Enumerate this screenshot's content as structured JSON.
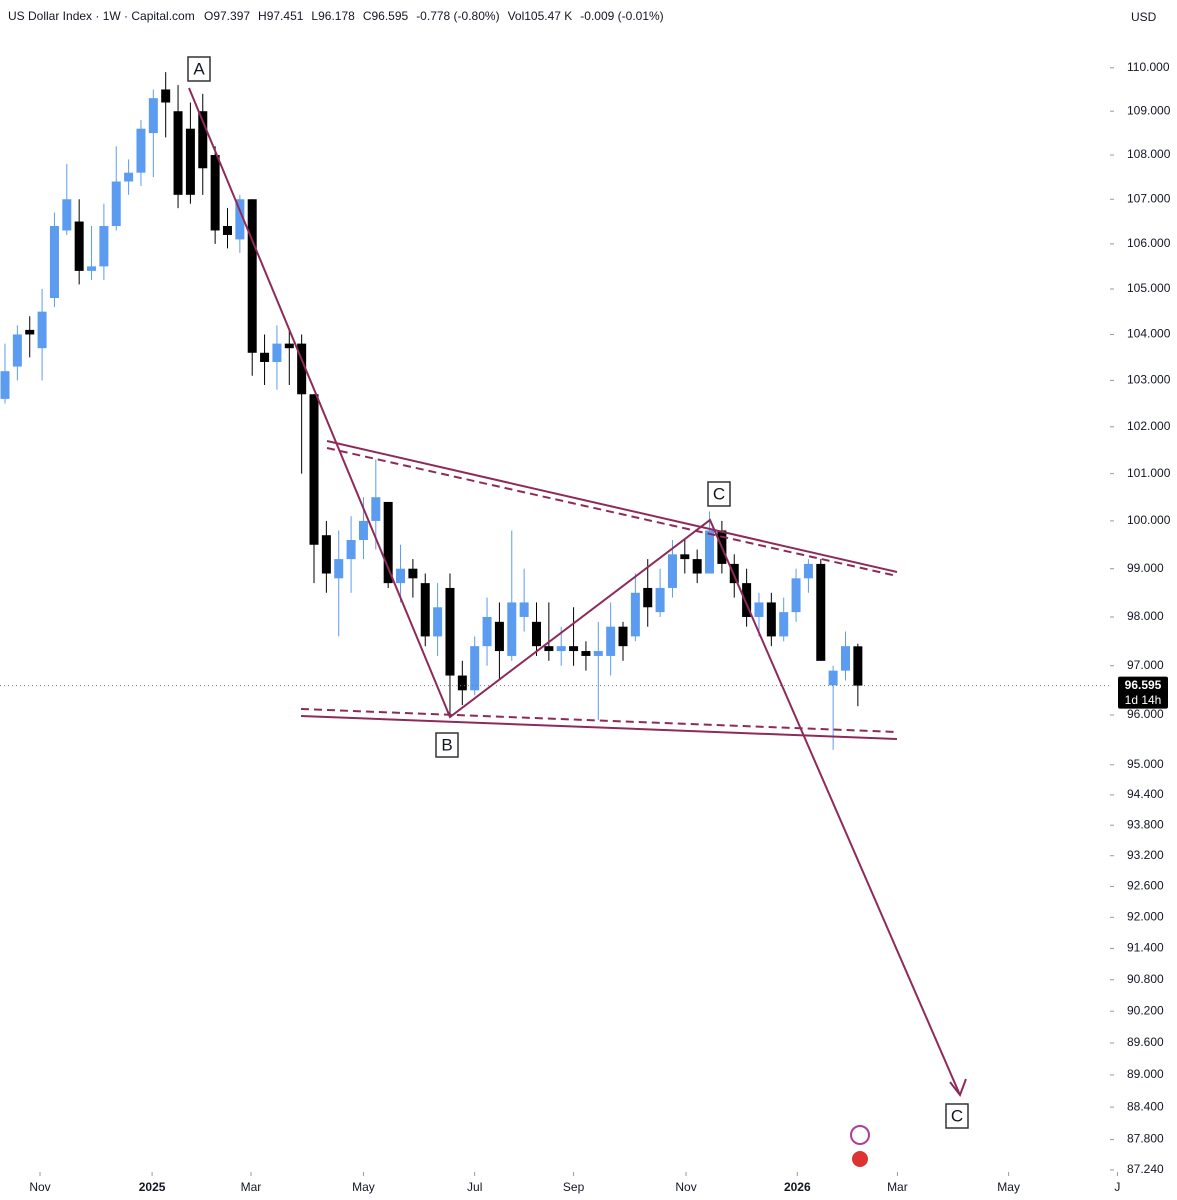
{
  "chart_data": {
    "type": "candlestick",
    "title": "US Dollar Index · 1W · Capital.com",
    "legend_values": [
      "O97.397",
      "H97.451",
      "L96.178",
      "C96.595",
      "-0.778 (-0.80%)",
      "Vol105.47 K",
      "-0.009 (-0.01%)"
    ],
    "currency": "USD",
    "log_scale": true,
    "grid": false,
    "up_color": "#5b9cf0",
    "down_color": "#000000",
    "line_color": "#8e2a5a",
    "x": [
      0,
      1,
      2,
      3,
      4,
      5,
      6,
      7,
      8,
      9,
      10,
      11,
      12,
      13,
      14,
      15,
      16,
      17,
      18,
      19,
      20,
      21,
      22,
      23,
      24,
      25,
      26,
      27,
      28,
      29,
      30,
      31,
      32,
      33,
      34,
      35,
      36,
      37,
      38,
      39,
      40,
      41,
      42,
      43,
      44,
      45,
      46,
      47,
      48,
      49,
      50,
      51,
      52,
      53,
      54,
      55,
      56,
      57,
      58,
      59,
      60,
      61,
      62,
      63,
      64,
      65,
      66,
      67,
      68,
      69
    ],
    "open": [
      102.6,
      103.3,
      104.1,
      103.7,
      104.8,
      106.3,
      106.5,
      105.4,
      105.5,
      106.4,
      107.4,
      107.6,
      108.5,
      109.5,
      109.0,
      108.6,
      109.0,
      108.0,
      106.4,
      106.1,
      107.0,
      103.6,
      103.4,
      103.8,
      103.8,
      102.7,
      99.7,
      98.8,
      99.2,
      99.6,
      100.0,
      100.4,
      98.7,
      99.0,
      98.7,
      97.6,
      98.6,
      96.8,
      96.5,
      97.4,
      97.9,
      97.2,
      98.0,
      97.9,
      97.4,
      97.3,
      97.4,
      97.3,
      97.2,
      97.2,
      97.8,
      97.6,
      98.6,
      98.1,
      98.6,
      99.3,
      99.2,
      98.9,
      99.8,
      99.1,
      98.7,
      98.0,
      98.3,
      97.6,
      98.1,
      98.8,
      99.1,
      96.6,
      96.9,
      97.397
    ],
    "high": [
      103.8,
      104.2,
      104.4,
      105.0,
      106.7,
      107.8,
      107.0,
      106.4,
      106.9,
      108.2,
      107.9,
      108.8,
      109.5,
      109.9,
      109.6,
      109.2,
      109.4,
      108.2,
      106.8,
      107.1,
      107.0,
      104.0,
      104.2,
      104.1,
      104.0,
      102.7,
      100.0,
      99.8,
      100.1,
      100.5,
      101.3,
      100.4,
      99.5,
      99.2,
      98.9,
      98.7,
      98.9,
      97.1,
      97.6,
      98.4,
      98.3,
      99.8,
      99.0,
      98.3,
      98.3,
      97.8,
      98.2,
      97.5,
      97.9,
      98.3,
      97.9,
      98.9,
      99.2,
      99.0,
      99.6,
      99.6,
      99.4,
      100.2,
      100.0,
      99.3,
      99.0,
      98.5,
      98.5,
      98.4,
      99.0,
      99.2,
      99.2,
      97.0,
      97.7,
      97.451
    ],
    "low": [
      102.5,
      103.0,
      103.5,
      103.0,
      104.6,
      106.2,
      105.1,
      105.2,
      105.2,
      106.3,
      107.1,
      107.3,
      107.5,
      108.4,
      106.8,
      106.9,
      107.1,
      106.0,
      105.9,
      105.8,
      103.1,
      102.9,
      102.8,
      102.9,
      101.0,
      98.7,
      98.5,
      97.6,
      98.5,
      99.2,
      99.4,
      98.6,
      98.3,
      98.4,
      97.4,
      97.2,
      96.0,
      96.2,
      96.4,
      97.0,
      96.7,
      97.1,
      97.7,
      97.2,
      97.1,
      97.0,
      97.0,
      96.9,
      95.9,
      96.8,
      97.1,
      97.5,
      97.8,
      98.0,
      98.4,
      98.9,
      98.7,
      98.9,
      98.9,
      98.4,
      97.8,
      97.6,
      97.4,
      97.5,
      97.9,
      98.5,
      97.1,
      95.3,
      96.7,
      96.178
    ],
    "close": [
      103.2,
      104.0,
      104.0,
      104.5,
      106.4,
      107.0,
      105.4,
      105.5,
      106.4,
      107.4,
      107.6,
      108.6,
      109.3,
      109.2,
      107.1,
      107.1,
      107.7,
      106.3,
      106.2,
      107.0,
      103.6,
      103.4,
      103.8,
      103.7,
      102.7,
      99.5,
      98.9,
      99.2,
      99.6,
      100.0,
      100.5,
      98.7,
      99.0,
      98.8,
      97.6,
      98.2,
      96.8,
      96.5,
      97.4,
      98.0,
      97.3,
      98.3,
      98.3,
      97.4,
      97.3,
      97.4,
      97.3,
      97.2,
      97.3,
      97.8,
      97.4,
      98.5,
      98.2,
      98.6,
      99.3,
      99.2,
      98.9,
      99.8,
      99.1,
      98.7,
      98.0,
      98.3,
      97.6,
      98.1,
      98.8,
      99.1,
      97.1,
      96.9,
      97.4,
      96.595
    ],
    "last_price": 96.595,
    "countdown": "1d 14h",
    "annotations": [
      "A",
      "B",
      "C",
      "C"
    ],
    "xlim": [
      -0.405,
      89.4
    ],
    "xticks": [
      {
        "value": 2.83,
        "label": "Nov"
      },
      {
        "value": 11.9,
        "label": "2025"
      },
      {
        "value": 19.9,
        "label": "Mar"
      },
      {
        "value": 29.0,
        "label": "May"
      },
      {
        "value": 38.0,
        "label": "Jul"
      },
      {
        "value": 46.0,
        "label": "Sep"
      },
      {
        "value": 55.1,
        "label": "Nov"
      },
      {
        "value": 64.1,
        "label": "2026"
      },
      {
        "value": 72.2,
        "label": "Mar"
      },
      {
        "value": 81.2,
        "label": "May"
      },
      {
        "value": 90.0,
        "label": "J"
      }
    ],
    "ylim": [
      87.33,
      111.58
    ],
    "yticks": [
      {
        "value": 110,
        "label": "110.000"
      },
      {
        "value": 109,
        "label": "109.000"
      },
      {
        "value": 108,
        "label": "108.000"
      },
      {
        "value": 107,
        "label": "107.000"
      },
      {
        "value": 106,
        "label": "106.000"
      },
      {
        "value": 105,
        "label": "105.000"
      },
      {
        "value": 104,
        "label": "104.000"
      },
      {
        "value": 103,
        "label": "103.000"
      },
      {
        "value": 102,
        "label": "102.000"
      },
      {
        "value": 101,
        "label": "101.000"
      },
      {
        "value": 100,
        "label": "100.000"
      },
      {
        "value": 99,
        "label": "99.000"
      },
      {
        "value": 98,
        "label": "98.000"
      },
      {
        "value": 97,
        "label": "97.000"
      },
      {
        "value": 96,
        "label": "96.000"
      },
      {
        "value": 95,
        "label": "95.000"
      },
      {
        "value": 94.4,
        "label": "94.400"
      },
      {
        "value": 93.8,
        "label": "93.800"
      },
      {
        "value": 93.2,
        "label": "93.200"
      },
      {
        "value": 92.6,
        "label": "92.600"
      },
      {
        "value": 92,
        "label": "92.000"
      },
      {
        "value": 91.4,
        "label": "91.400"
      },
      {
        "value": 90.8,
        "label": "90.800"
      },
      {
        "value": 90.2,
        "label": "90.200"
      },
      {
        "value": 89.6,
        "label": "89.600"
      },
      {
        "value": 89,
        "label": "89.000"
      },
      {
        "value": 88.4,
        "label": "88.400"
      },
      {
        "value": 87.8,
        "label": "87.800"
      },
      {
        "value": 87.24,
        "label": "87.240"
      }
    ]
  }
}
